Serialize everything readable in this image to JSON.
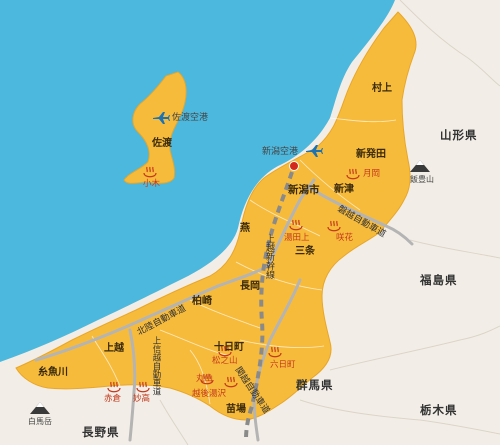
{
  "airports": {
    "sado": "佐渡空港",
    "niigata": "新潟空港"
  },
  "cities": {
    "sado": "佐渡",
    "murakami": "村上",
    "shibata": "新発田",
    "niigata": "新潟市",
    "niitsu": "新津",
    "tsubame": "燕",
    "sanjo": "三条",
    "nagaoka": "長岡",
    "kashiwazaki": "柏崎",
    "joetsu": "上越",
    "itoigawa": "糸魚川",
    "tokamachi": "十日町",
    "naeba": "苗場"
  },
  "onsen": {
    "ogi": "小木",
    "tsukioka": "月岡",
    "yutagami": "湯田上",
    "sakihana": "咲花",
    "matsunoyama": "松之山",
    "muikamachi": "六日町",
    "maruyama": "丸山",
    "echigoyuzawa": "越後湯沢",
    "akakura": "赤倉",
    "myoko": "妙高"
  },
  "prefectures": {
    "yamagata": "山形県",
    "fukushima": "福島県",
    "gunma": "群馬県",
    "tochigi": "栃木県",
    "nagano": "長野県"
  },
  "mountains": {
    "iide": "飯豊山",
    "shirouma": "白馬岳"
  },
  "lines": {
    "shinkansen": "上越新幹線",
    "hokuriku_exp": "北陸自動車道",
    "banetsu_exp": "磐越自動車道",
    "joshinetsu_exp": "上信越自動車道",
    "kanetsu_exp": "関越自動車道"
  },
  "colors": {
    "sea": "#4cb8dd",
    "land_niigata": "#f7bb3c",
    "land_other": "#efe9df",
    "highway": "#b4b4b4",
    "onsen": "#c4391c",
    "airport": "#1b73b3"
  }
}
